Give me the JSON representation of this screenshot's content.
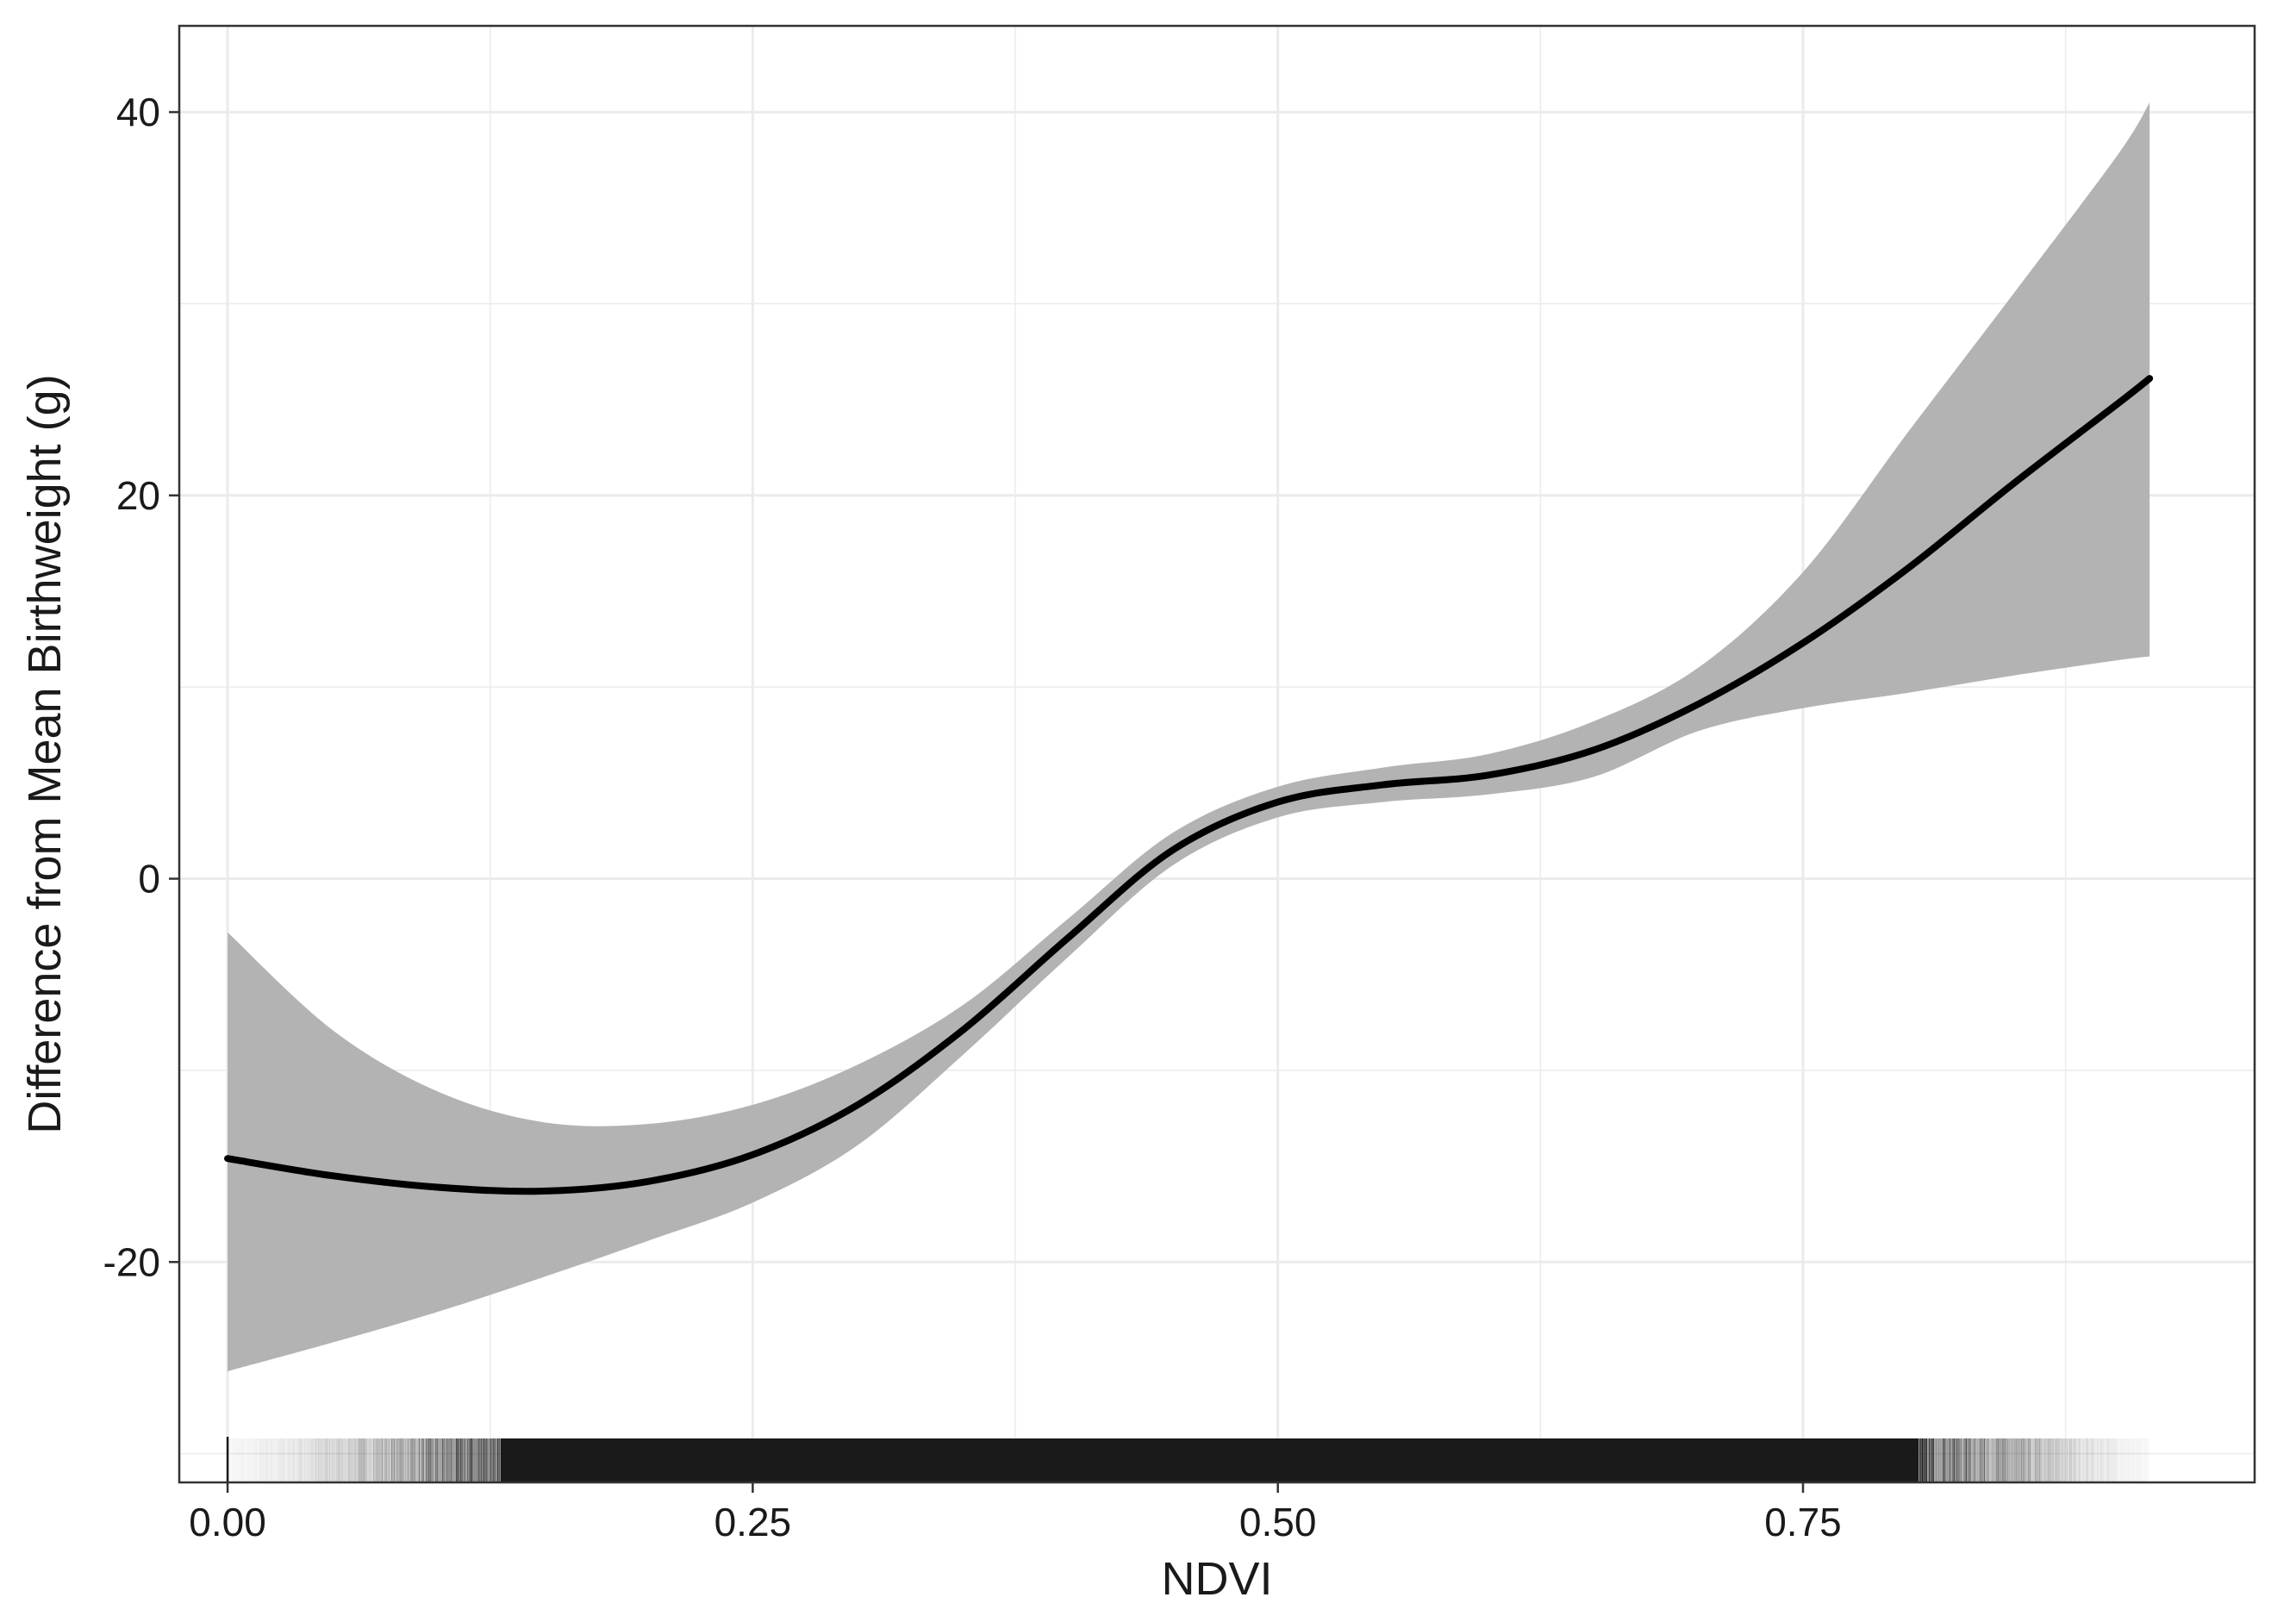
{
  "chart_data": {
    "type": "line",
    "title": "",
    "xlabel": "NDVI",
    "ylabel": "Difference from Mean Birthweight (g)",
    "xlim": [
      -0.023,
      0.965
    ],
    "ylim": [
      -31.5,
      44.5
    ],
    "x_ticks": [
      0.0,
      0.25,
      0.5,
      0.75
    ],
    "x_tick_labels": [
      "0.00",
      "0.25",
      "0.50",
      "0.75"
    ],
    "y_ticks": [
      -20,
      0,
      20,
      40
    ],
    "y_tick_labels": [
      "-20",
      "0",
      "20",
      "40"
    ],
    "minor_x_gridlines": [
      0.125,
      0.375,
      0.625,
      0.875
    ],
    "minor_y_gridlines": [
      -30,
      -10,
      10,
      30
    ],
    "grid": true,
    "legend": "none",
    "colors": {
      "line": "#000000",
      "ribbon": "#b3b3b3",
      "grid": "#ebebeb",
      "panel_border": "#333333",
      "rug": "#1a1a1a",
      "text": "#1a1a1a"
    },
    "series": [
      {
        "x": [
          0.0,
          0.05,
          0.1,
          0.15,
          0.2,
          0.25,
          0.3,
          0.35,
          0.4,
          0.45,
          0.5,
          0.55,
          0.6,
          0.65,
          0.7,
          0.75,
          0.8,
          0.85,
          0.9,
          0.915
        ],
        "y": [
          -14.6,
          -15.5,
          -16.1,
          -16.3,
          -15.8,
          -14.4,
          -11.8,
          -7.9,
          -3.1,
          1.5,
          4.0,
          4.9,
          5.4,
          6.7,
          9.1,
          12.3,
          16.2,
          20.6,
          24.8,
          26.1
        ]
      }
    ],
    "ribbon": {
      "x": [
        0.0,
        0.05,
        0.1,
        0.15,
        0.2,
        0.25,
        0.3,
        0.35,
        0.4,
        0.45,
        0.5,
        0.55,
        0.6,
        0.65,
        0.7,
        0.75,
        0.8,
        0.85,
        0.9,
        0.915
      ],
      "lower": [
        -25.7,
        -24.2,
        -22.6,
        -20.8,
        -18.9,
        -16.9,
        -13.9,
        -9.2,
        -4.1,
        0.7,
        3.2,
        4.0,
        4.4,
        5.3,
        7.7,
        8.9,
        9.7,
        10.6,
        11.4,
        11.6
      ],
      "upper": [
        -2.8,
        -7.9,
        -11.1,
        -12.7,
        -12.8,
        -11.8,
        -9.7,
        -6.6,
        -2.1,
        2.4,
        4.8,
        5.8,
        6.5,
        8.2,
        11.0,
        16.0,
        23.3,
        30.5,
        37.8,
        40.5
      ]
    },
    "rug": {
      "x_start": 0.0,
      "x_end": 0.915,
      "dense_from": 0.13,
      "dense_to": 0.805
    }
  }
}
